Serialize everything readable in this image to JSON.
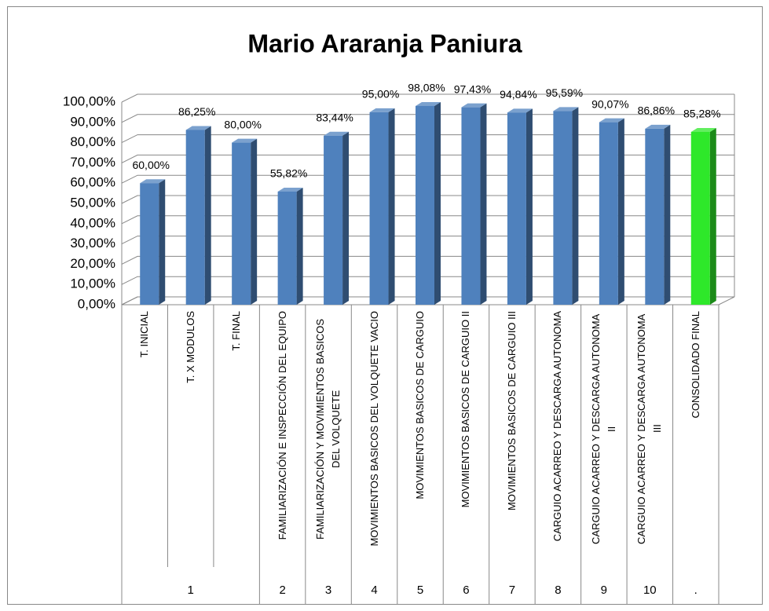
{
  "chart_data": {
    "type": "bar3d",
    "title": "Mario Araranja Paniura",
    "categories": [
      "T. INICIAL",
      "T. X MODULOS",
      "T. FINAL",
      "FAMILIARIZACIÓN E INSPECCIÓN DEL EQUIPO",
      "FAMILIARIZACIÓN Y MOVIMIENTOS BASICOS DEL VOLQUETE",
      "MOVIMIENTOS BASICOS DEL VOLQUETE VACIO",
      "MOVIMIENTOS BASICOS DE CARGUIO",
      "MOVIMIENTOS BASICOS DE CARGUIO II",
      "MOVIMIENTOS BASICOS DE CARGUIO III",
      "CARGUIO ACARREO Y DESCARGA AUTONOMA",
      "CARGUIO ACARREO Y DESCARGA AUTONOMA II",
      "CARGUIO ACARREO Y DESCARGA AUTONOMA III",
      "CONSOLIDADO FINAL"
    ],
    "group_labels": [
      "1",
      null,
      null,
      "2",
      "3",
      "4",
      "5",
      "6",
      "7",
      "8",
      "9",
      "10",
      "."
    ],
    "values": [
      60,
      86.25,
      80,
      55.82,
      83.44,
      95,
      98.08,
      97.43,
      94.84,
      95.59,
      90.07,
      86.86,
      85.28
    ],
    "value_labels": [
      "60,00%",
      "86,25%",
      "80,00%",
      "55,82%",
      "83,44%",
      "95,00%",
      "98,08%",
      "97,43%",
      "94,84%",
      "95,59%",
      "90,07%",
      "86,86%",
      "85,28%"
    ],
    "colors": [
      "#4f81bd",
      "#4f81bd",
      "#4f81bd",
      "#4f81bd",
      "#4f81bd",
      "#4f81bd",
      "#4f81bd",
      "#4f81bd",
      "#4f81bd",
      "#4f81bd",
      "#4f81bd",
      "#4f81bd",
      "#2ee82a"
    ],
    "ylim": [
      0,
      100
    ],
    "yticks": [
      {
        "value": 0,
        "label": "0,00%"
      },
      {
        "value": 10,
        "label": "10,00%"
      },
      {
        "value": 20,
        "label": "20,00%"
      },
      {
        "value": 30,
        "label": "30,00%"
      },
      {
        "value": 40,
        "label": "40,00%"
      },
      {
        "value": 50,
        "label": "50,00%"
      },
      {
        "value": 60,
        "label": "60,00%"
      },
      {
        "value": 70,
        "label": "70,00%"
      },
      {
        "value": 80,
        "label": "80,00%"
      },
      {
        "value": 90,
        "label": "90,00%"
      },
      {
        "value": 100,
        "label": "100,00%"
      }
    ],
    "grid": true
  }
}
